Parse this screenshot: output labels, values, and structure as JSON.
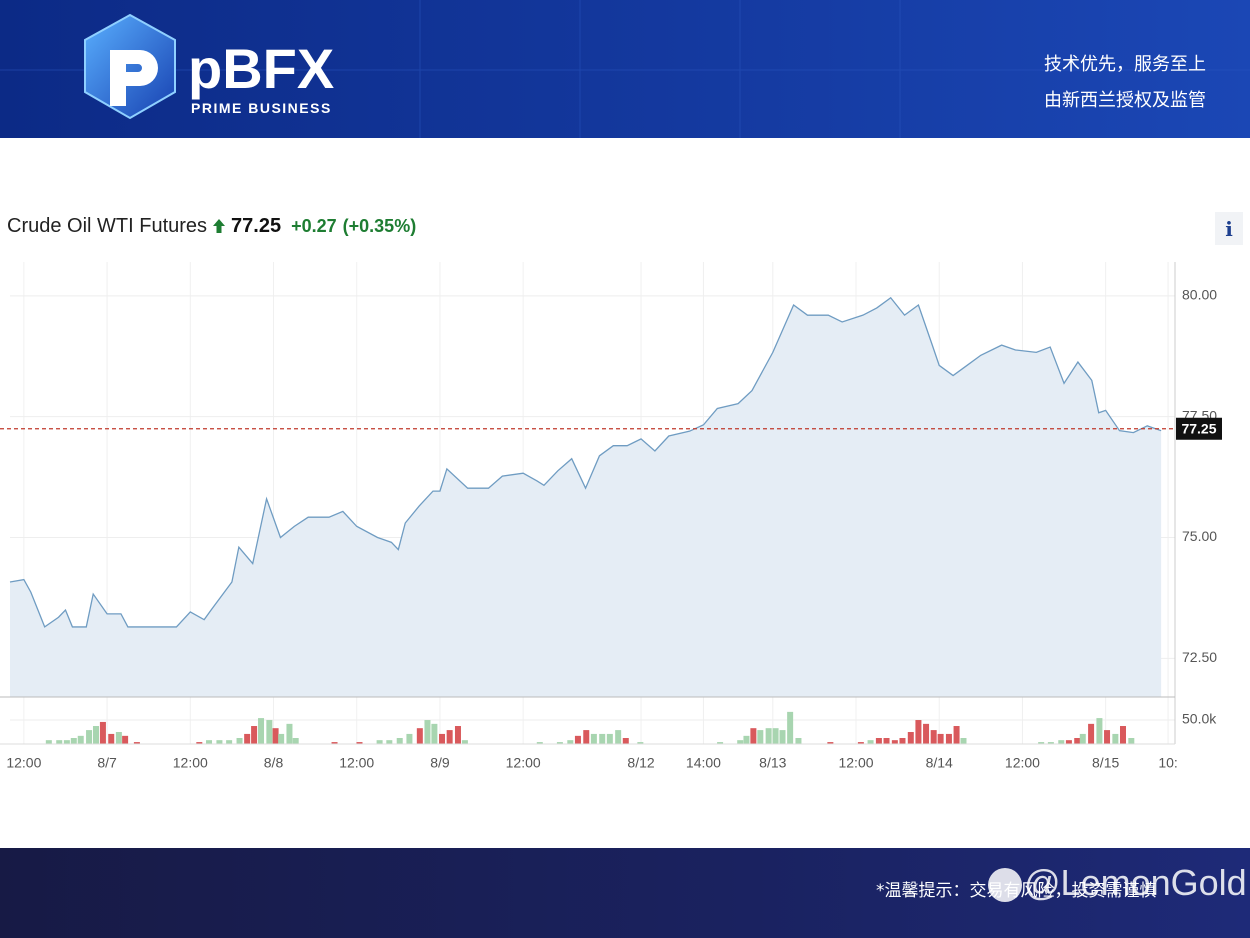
{
  "header": {
    "logo_text": "pBFX",
    "logo_subtitle": "PRIME BUSINESS",
    "slogans": [
      "技术优先，服务至上",
      "由新西兰授权及监管"
    ]
  },
  "chart_data": {
    "type": "line",
    "title": "Crude Oil WTI Futures",
    "price": 77.25,
    "change": "+0.27",
    "change_percent": "(+0.35%)",
    "info_button": "i",
    "x": [
      -2,
      0,
      1,
      3,
      5,
      6,
      7,
      9,
      10,
      12,
      14,
      15,
      22,
      24,
      26,
      27,
      30,
      31,
      33,
      35,
      37,
      39,
      41,
      44,
      46,
      48,
      51,
      53,
      54,
      55,
      57,
      59,
      60,
      61,
      64,
      67,
      69,
      72,
      74,
      75,
      77,
      79,
      81,
      83,
      85,
      87,
      89,
      91,
      93,
      96,
      98,
      100,
      103,
      105,
      108,
      111,
      113,
      116,
      118,
      121,
      123,
      125,
      127,
      129,
      131,
      132,
      134,
      136,
      138,
      141,
      143,
      146,
      148,
      150,
      152,
      154,
      155,
      156,
      158,
      160,
      162,
      164
    ],
    "series": [
      {
        "color": "#6f9cc2",
        "fill": "#e5edf5",
        "values": [
          74.08,
          74.13,
          73.87,
          73.15,
          73.35,
          73.5,
          73.15,
          73.15,
          73.83,
          73.42,
          73.42,
          73.15,
          73.15,
          73.46,
          73.3,
          73.5,
          74.08,
          74.8,
          74.46,
          75.8,
          75.0,
          75.23,
          75.42,
          75.42,
          75.54,
          75.23,
          75.0,
          74.9,
          74.75,
          75.3,
          75.65,
          75.96,
          75.96,
          76.42,
          76.02,
          76.02,
          76.27,
          76.33,
          76.17,
          76.08,
          76.38,
          76.63,
          76.02,
          76.69,
          76.9,
          76.9,
          77.04,
          76.79,
          77.1,
          77.2,
          77.33,
          77.67,
          77.77,
          78.04,
          78.83,
          79.81,
          79.6,
          79.6,
          79.46,
          79.6,
          79.75,
          79.96,
          79.6,
          79.81,
          78.98,
          78.56,
          78.35,
          78.56,
          78.77,
          78.98,
          78.88,
          78.83,
          78.94,
          78.19,
          78.63,
          78.25,
          77.58,
          77.63,
          77.21,
          77.17,
          77.31,
          77.21
        ]
      }
    ],
    "xlim": [
      -2,
      166
    ],
    "ylim": [
      71.7,
      80.7
    ],
    "xticks": [
      {
        "value": 0,
        "label": "12:00"
      },
      {
        "value": 12,
        "label": "8/7"
      },
      {
        "value": 24,
        "label": "12:00"
      },
      {
        "value": 36,
        "label": "8/8"
      },
      {
        "value": 48,
        "label": "12:00"
      },
      {
        "value": 60,
        "label": "8/9"
      },
      {
        "value": 72,
        "label": "12:00"
      },
      {
        "value": 89,
        "label": "8/12"
      },
      {
        "value": 98,
        "label": "14:00"
      },
      {
        "value": 108,
        "label": "8/13"
      },
      {
        "value": 120,
        "label": "12:00"
      },
      {
        "value": 132,
        "label": "8/14"
      },
      {
        "value": 144,
        "label": "12:00"
      },
      {
        "value": 156,
        "label": "8/15"
      },
      {
        "value": 165,
        "label": "10:"
      }
    ],
    "yticks": [
      {
        "value": 72.5,
        "label": "72.50"
      },
      {
        "value": 75,
        "label": "75.00"
      },
      {
        "value": 77.5,
        "label": "77.50"
      },
      {
        "value": 80,
        "label": "80.00"
      }
    ],
    "grid": true,
    "price_line_color": "#c0392b",
    "volume": {
      "ylim": [
        0,
        98000
      ],
      "yticks": [
        {
          "value": 50000,
          "label": "50.0k"
        }
      ],
      "x": [
        3.6,
        5.1,
        6.2,
        7.2,
        8.2,
        9.4,
        10.4,
        11.4,
        12.6,
        13.7,
        14.6,
        16.3,
        25.3,
        26.7,
        28.2,
        29.6,
        31.1,
        32.2,
        33.2,
        34.2,
        35.4,
        36.3,
        37.1,
        38.3,
        39.2,
        44.8,
        48.4,
        51.3,
        52.7,
        54.2,
        55.6,
        57.1,
        58.2,
        59.2,
        60.3,
        61.4,
        62.6,
        63.6,
        74.4,
        77.3,
        78.8,
        79.9,
        81.1,
        82.2,
        83.4,
        84.5,
        85.7,
        86.8,
        88.9,
        100.4,
        103.3,
        104.2,
        105.2,
        106.2,
        107.4,
        108.4,
        109.4,
        110.5,
        111.7,
        116.3,
        120.7,
        122.1,
        123.3,
        124.4,
        125.6,
        126.7,
        127.9,
        129.0,
        130.1,
        131.2,
        132.2,
        133.4,
        134.5,
        135.5,
        146.7,
        148.1,
        149.6,
        150.7,
        151.9,
        152.7,
        153.9,
        155.1,
        156.2,
        157.4,
        158.5,
        159.7
      ],
      "values": [
        8000,
        8000,
        8000,
        12500,
        17000,
        29000,
        37500,
        46000,
        21000,
        25000,
        17000,
        4000,
        4000,
        8000,
        8000,
        8000,
        12500,
        21000,
        37500,
        54000,
        50000,
        33000,
        21000,
        42000,
        12500,
        4000,
        4000,
        8000,
        8000,
        12500,
        21000,
        33000,
        50000,
        42000,
        21000,
        29000,
        37500,
        8000,
        4000,
        4000,
        8000,
        17000,
        29000,
        21000,
        21000,
        21000,
        29000,
        12500,
        4000,
        4000,
        8000,
        17000,
        33000,
        29000,
        33000,
        33000,
        29000,
        67000,
        12500,
        4000,
        4000,
        8000,
        12500,
        12500,
        8000,
        12500,
        25000,
        50000,
        42000,
        29000,
        21000,
        21000,
        37500,
        12500,
        4000,
        4000,
        8000,
        8000,
        12500,
        21000,
        42000,
        54000,
        29000,
        21000,
        37500,
        12500
      ],
      "colors": [
        "#a8d5b0",
        "#a8d5b0",
        "#a8d5b0",
        "#a8d5b0",
        "#a8d5b0",
        "#a8d5b0",
        "#a8d5b0",
        "#d9595c",
        "#d9595c",
        "#a8d5b0",
        "#d9595c",
        "#d9595c",
        "#d9595c",
        "#a8d5b0",
        "#a8d5b0",
        "#a8d5b0",
        "#a8d5b0",
        "#d9595c",
        "#d9595c",
        "#a8d5b0",
        "#a8d5b0",
        "#d9595c",
        "#a8d5b0",
        "#a8d5b0",
        "#a8d5b0",
        "#d9595c",
        "#d9595c",
        "#a8d5b0",
        "#a8d5b0",
        "#a8d5b0",
        "#a8d5b0",
        "#d9595c",
        "#a8d5b0",
        "#a8d5b0",
        "#d9595c",
        "#d9595c",
        "#d9595c",
        "#a8d5b0",
        "#a8d5b0",
        "#a8d5b0",
        "#a8d5b0",
        "#d9595c",
        "#d9595c",
        "#a8d5b0",
        "#a8d5b0",
        "#a8d5b0",
        "#a8d5b0",
        "#d9595c",
        "#a8d5b0",
        "#a8d5b0",
        "#a8d5b0",
        "#a8d5b0",
        "#d9595c",
        "#a8d5b0",
        "#a8d5b0",
        "#a8d5b0",
        "#a8d5b0",
        "#a8d5b0",
        "#a8d5b0",
        "#d9595c",
        "#d9595c",
        "#a8d5b0",
        "#d9595c",
        "#d9595c",
        "#d9595c",
        "#d9595c",
        "#d9595c",
        "#d9595c",
        "#d9595c",
        "#d9595c",
        "#d9595c",
        "#d9595c",
        "#d9595c",
        "#a8d5b0",
        "#a8d5b0",
        "#a8d5b0",
        "#a8d5b0",
        "#d9595c",
        "#d9595c",
        "#a8d5b0",
        "#d9595c",
        "#a8d5b0",
        "#d9595c",
        "#a8d5b0",
        "#d9595c",
        "#a8d5b0"
      ]
    }
  },
  "footer": {
    "notice": "*温馨提示：交易有风险，投资需谨慎",
    "watermark": "@LemonGold"
  }
}
